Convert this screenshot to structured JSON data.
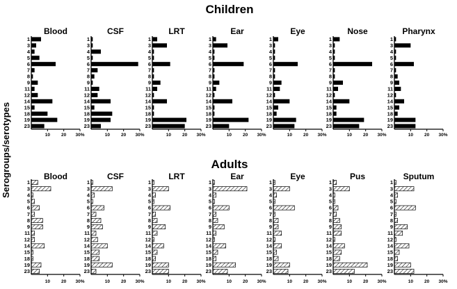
{
  "y_axis_label": "Serogroups/serotypes",
  "categories": [
    "1",
    "3",
    "4",
    "5",
    "6",
    "7",
    "8",
    "9",
    "11",
    "12",
    "14",
    "15",
    "18",
    "19",
    "23"
  ],
  "x_ticks": [
    "10",
    "20",
    "30%"
  ],
  "colors": {
    "bar_children": "#000000",
    "bar_adults_fill": "#ffffff",
    "bar_adults_hatch": "#000000",
    "axis": "#000000"
  },
  "chart_data": [
    {
      "group": "Children",
      "type": "bar",
      "orientation": "horizontal",
      "xlim": [
        0,
        30
      ],
      "categories": [
        "1",
        "3",
        "4",
        "5",
        "6",
        "7",
        "8",
        "9",
        "11",
        "12",
        "14",
        "15",
        "18",
        "19",
        "23"
      ],
      "series": [
        {
          "name": "Blood",
          "values": [
            6,
            3,
            2,
            5,
            15,
            2,
            1,
            4,
            2,
            4,
            13,
            2,
            10,
            16,
            8
          ]
        },
        {
          "name": "CSF",
          "values": [
            1,
            1,
            6,
            1,
            29,
            4,
            2,
            1,
            5,
            4,
            12,
            2,
            13,
            12,
            6
          ]
        },
        {
          "name": "LRT",
          "values": [
            3,
            9,
            1,
            1,
            11,
            1,
            1,
            5,
            3,
            1,
            9,
            1,
            1,
            21,
            20
          ]
        },
        {
          "name": "Ear",
          "values": [
            2,
            9,
            1,
            1,
            19,
            1,
            1,
            4,
            2,
            1,
            12,
            1,
            1,
            22,
            10
          ]
        },
        {
          "name": "Eye",
          "values": [
            3,
            1,
            1,
            1,
            15,
            1,
            1,
            5,
            4,
            1,
            10,
            3,
            2,
            14,
            13
          ]
        },
        {
          "name": "Nose",
          "values": [
            4,
            1,
            1,
            1,
            24,
            1,
            1,
            6,
            3,
            1,
            10,
            2,
            2,
            19,
            16
          ]
        },
        {
          "name": "Pharynx",
          "values": [
            1,
            10,
            1,
            1,
            12,
            1,
            2,
            3,
            4,
            1,
            6,
            3,
            2,
            13,
            13
          ]
        }
      ]
    },
    {
      "group": "Adults",
      "type": "bar",
      "orientation": "horizontal",
      "xlim": [
        0,
        30
      ],
      "categories": [
        "1",
        "3",
        "4",
        "5",
        "6",
        "7",
        "8",
        "9",
        "11",
        "12",
        "14",
        "15",
        "18",
        "19",
        "23"
      ],
      "series": [
        {
          "name": "Blood",
          "values": [
            4,
            12,
            1,
            2,
            5,
            2,
            7,
            7,
            2,
            2,
            8,
            1,
            1,
            6,
            5
          ]
        },
        {
          "name": "CSF",
          "values": [
            1,
            13,
            2,
            1,
            8,
            3,
            6,
            7,
            3,
            4,
            10,
            5,
            5,
            13,
            3
          ]
        },
        {
          "name": "LRT",
          "values": [
            1,
            10,
            2,
            1,
            11,
            2,
            3,
            8,
            3,
            1,
            7,
            3,
            2,
            10,
            10
          ]
        },
        {
          "name": "Ear",
          "values": [
            1,
            21,
            2,
            1,
            10,
            2,
            3,
            7,
            2,
            1,
            8,
            3,
            2,
            14,
            9
          ]
        },
        {
          "name": "Eye",
          "values": [
            1,
            10,
            2,
            1,
            13,
            1,
            3,
            3,
            5,
            1,
            5,
            2,
            3,
            10,
            9
          ]
        },
        {
          "name": "Pus",
          "values": [
            2,
            10,
            1,
            1,
            3,
            2,
            4,
            5,
            5,
            1,
            7,
            5,
            4,
            21,
            13
          ]
        },
        {
          "name": "Sputum",
          "values": [
            1,
            12,
            2,
            1,
            13,
            1,
            2,
            8,
            5,
            1,
            9,
            3,
            2,
            10,
            12
          ]
        }
      ]
    }
  ]
}
